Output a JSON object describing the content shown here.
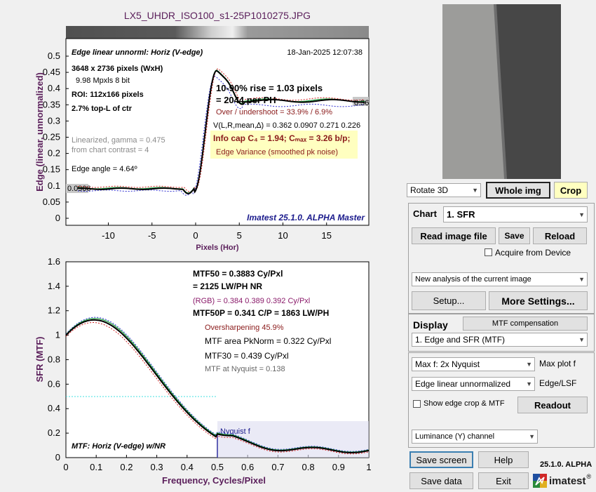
{
  "title": "LX5_UHDR_ISO100_s1-25P1010275.JPG",
  "edge_plot": {
    "subtitle": "Edge linear unnorml: Horiz (V-edge)",
    "date": "18-Jan-2025 12:07:38",
    "info": [
      "3648 x 2736 pixels (WxH)",
      "9.98 Mpxls   8 bit",
      "ROI:  112x166 pixels",
      "2.7% top-L of ctr"
    ],
    "linearized": [
      "Linearized, gamma = 0.475",
      "from chart contrast = 4"
    ],
    "edge_angle": "Edge angle = 4.64º",
    "rise": "10-90% rise = 1.03 pixels",
    "rise2": "=   2044 per PH",
    "overshoot": "Over / undershoot = 33.9% /  6.9%",
    "v_values": "V(L,R,mean,∆) = 0.362  0.0907  0.271  0.226",
    "info_cap": "Info cap C₄ = 1.94;  Cₘₐₓ = 3.26 b/p;",
    "edge_variance": "Edge Variance (smoothed pk noise)",
    "left_value": "0.0906",
    "right_value": "0.36",
    "watermark": "Imatest 25.1.0. ALPHA Master",
    "xlabel": "Pixels (Hor)",
    "ylabel": "Edge (linear, unnormalized)",
    "xticks": [
      "-10",
      "-5",
      "0",
      "5",
      "10",
      "15"
    ],
    "yticks": [
      "0",
      "0.05",
      "0.1",
      "0.15",
      "0.2",
      "0.25",
      "0.3",
      "0.35",
      "0.4",
      "0.45",
      "0.5"
    ]
  },
  "mtf_plot": {
    "mtf50": "MTF50 = 0.3883 Cy/Pxl",
    "mtf50_lw": "= 2125 LW/PH  NR",
    "rgb": "(RGB) = 0.384  0.389  0.392 Cy/Pxl",
    "mtf50p": "MTF50P = 0.341 C/P = 1863 LW/PH",
    "oversharpening": "Oversharpening 45.9%",
    "mtf_area": "MTF area PkNorm = 0.322 Cy/Pxl",
    "mtf30": "MTF30 = 0.439 Cy/Pxl",
    "mtf_nyquist": "MTF at Nyquist = 0.138",
    "nyquist_label": "Nyquist f",
    "caption": "MTF: Horiz (V-edge) w/NR",
    "xlabel": "Frequency, Cycles/Pixel",
    "ylabel": "SFR (MTF)",
    "xticks": [
      "0",
      "0.1",
      "0.2",
      "0.3",
      "0.4",
      "0.5",
      "0.6",
      "0.7",
      "0.8",
      "0.9",
      "1"
    ],
    "yticks": [
      "0",
      "0.2",
      "0.4",
      "0.6",
      "0.8",
      "1",
      "1.2",
      "1.4",
      "1.6"
    ]
  },
  "controls": {
    "rotate": "Rotate 3D",
    "whole_img": "Whole img",
    "crop": "Crop",
    "chart_label": "Chart",
    "chart_value": "1. SFR",
    "read_image": "Read image file",
    "save": "Save",
    "reload": "Reload",
    "acquire": "Acquire from Device",
    "analysis": "New analysis of the current image",
    "setup": "Setup...",
    "more_settings": "More Settings...",
    "display_label": "Display",
    "mtf_compensation": "MTF compensation",
    "display_value": "1. Edge and SFR (MTF)",
    "maxf_value": "Max f:   2x Nyquist",
    "max_plot": "Max plot f",
    "edge_linear": "Edge linear unnormalized",
    "edge_lsf": "Edge/LSF",
    "show_edge": "Show edge crop & MTF",
    "readout": "Readout",
    "luminance": "Luminance (Y) channel",
    "save_screen": "Save screen",
    "help": "Help",
    "version": "25.1.0. ALPHA",
    "save_data": "Save data",
    "exit": "Exit",
    "logo": "imatest"
  },
  "colors": {
    "title": "#5a1e5a",
    "axis_label": "#5a1e5a",
    "caption": "#1a1a8c",
    "panel_border": "#a0a0a0",
    "crop_bg": "#ffffc0"
  }
}
